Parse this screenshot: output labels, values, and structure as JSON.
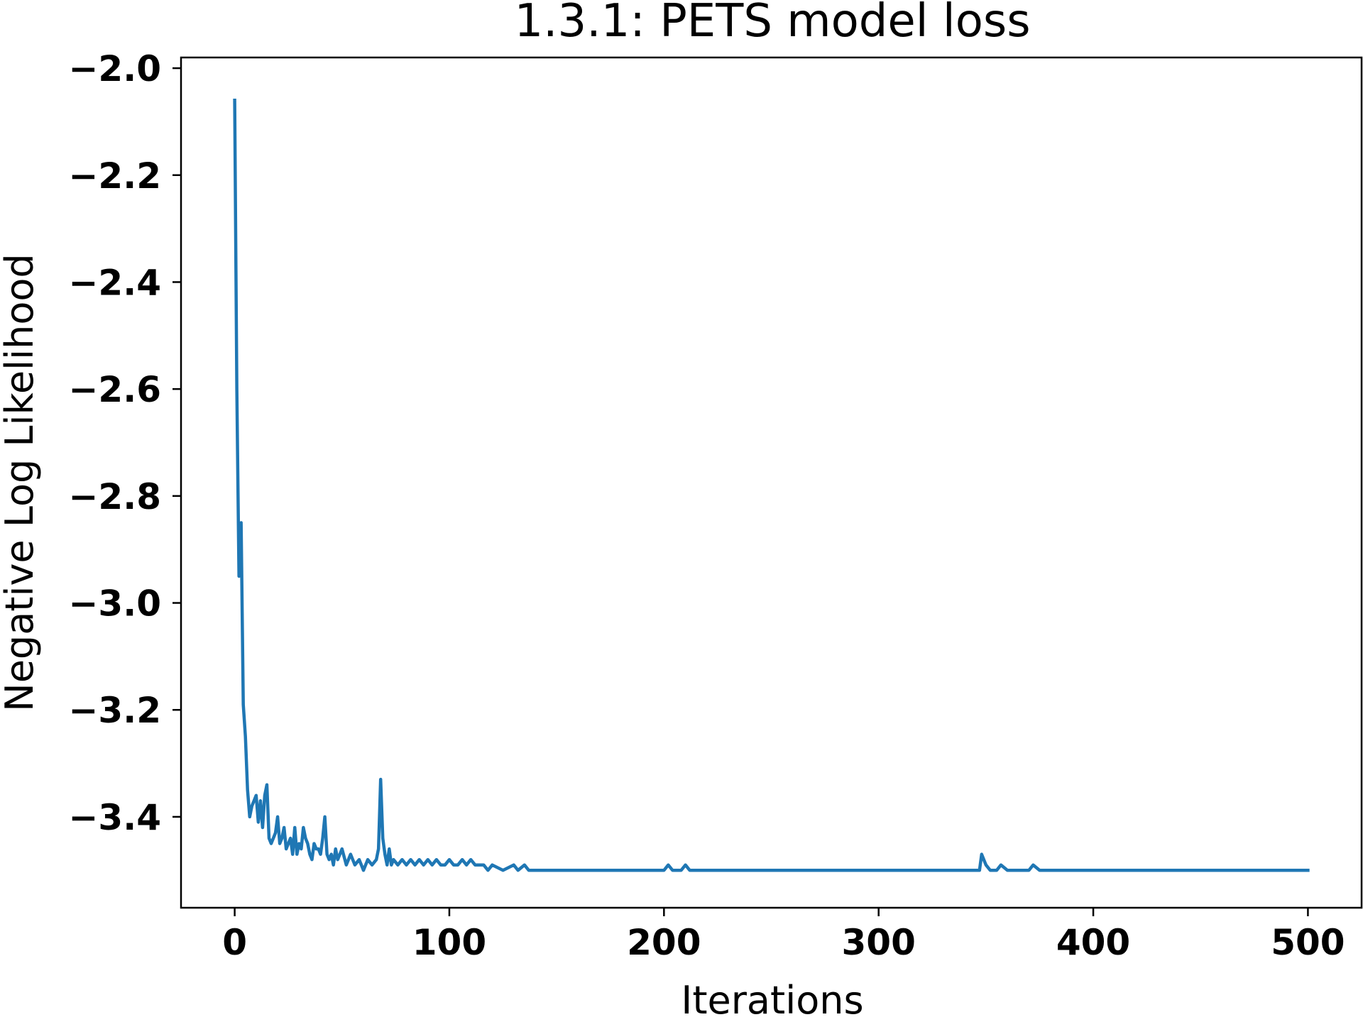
{
  "chart_data": {
    "type": "line",
    "title": "1.3.1: PETS model loss",
    "xlabel": "Iterations",
    "ylabel": "Negative Log Likelihood",
    "xlim": [
      -25,
      525
    ],
    "ylim": [
      -3.57,
      -1.98
    ],
    "xticks": [
      0,
      100,
      200,
      300,
      400,
      500
    ],
    "xtick_labels": [
      "0",
      "100",
      "200",
      "300",
      "400",
      "500"
    ],
    "yticks": [
      -2.0,
      -2.2,
      -2.4,
      -2.6,
      -2.8,
      -3.0,
      -3.2,
      -3.4
    ],
    "ytick_labels": [
      "−2.0",
      "−2.2",
      "−2.4",
      "−2.6",
      "−2.8",
      "−3.0",
      "−3.2",
      "−3.4"
    ],
    "grid": false,
    "legend": "none",
    "series_color": "#1f77b4",
    "series": [
      {
        "x": [
          0,
          1,
          2,
          3,
          4,
          5,
          6,
          7,
          8,
          9,
          10,
          11,
          12,
          13,
          14,
          15,
          16,
          17,
          18,
          19,
          20,
          21,
          22,
          23,
          24,
          25,
          26,
          27,
          28,
          29,
          30,
          31,
          32,
          33,
          34,
          35,
          36,
          37,
          38,
          39,
          40,
          41,
          42,
          43,
          44,
          45,
          46,
          47,
          48,
          49,
          50,
          52,
          54,
          56,
          58,
          60,
          62,
          64,
          66,
          67,
          68,
          69,
          70,
          71,
          72,
          73,
          74,
          76,
          78,
          80,
          82,
          84,
          86,
          88,
          90,
          92,
          94,
          96,
          98,
          100,
          102,
          104,
          106,
          108,
          110,
          112,
          114,
          116,
          118,
          120,
          125,
          130,
          132,
          135,
          137,
          140,
          145,
          150,
          155,
          160,
          170,
          180,
          190,
          200,
          202,
          204,
          208,
          210,
          212,
          220,
          230,
          240,
          250,
          260,
          270,
          280,
          290,
          300,
          310,
          320,
          330,
          340,
          345,
          347,
          348,
          350,
          352,
          355,
          357,
          360,
          370,
          372,
          375,
          380,
          390,
          400,
          410,
          420,
          430,
          440,
          450,
          460,
          470,
          480,
          487,
          488,
          490,
          495,
          500
        ],
        "y": [
          -2.06,
          -2.6,
          -2.95,
          -2.85,
          -3.19,
          -3.25,
          -3.35,
          -3.4,
          -3.38,
          -3.37,
          -3.36,
          -3.41,
          -3.37,
          -3.42,
          -3.36,
          -3.34,
          -3.44,
          -3.45,
          -3.44,
          -3.43,
          -3.4,
          -3.45,
          -3.44,
          -3.42,
          -3.46,
          -3.45,
          -3.44,
          -3.47,
          -3.42,
          -3.47,
          -3.45,
          -3.46,
          -3.42,
          -3.44,
          -3.45,
          -3.47,
          -3.48,
          -3.45,
          -3.46,
          -3.46,
          -3.47,
          -3.44,
          -3.4,
          -3.47,
          -3.48,
          -3.47,
          -3.49,
          -3.46,
          -3.48,
          -3.47,
          -3.46,
          -3.49,
          -3.47,
          -3.49,
          -3.48,
          -3.5,
          -3.48,
          -3.49,
          -3.48,
          -3.46,
          -3.33,
          -3.44,
          -3.47,
          -3.49,
          -3.46,
          -3.49,
          -3.48,
          -3.49,
          -3.48,
          -3.49,
          -3.48,
          -3.49,
          -3.48,
          -3.49,
          -3.48,
          -3.49,
          -3.48,
          -3.49,
          -3.49,
          -3.48,
          -3.49,
          -3.49,
          -3.48,
          -3.49,
          -3.48,
          -3.49,
          -3.49,
          -3.49,
          -3.5,
          -3.49,
          -3.5,
          -3.49,
          -3.5,
          -3.49,
          -3.5,
          -3.5,
          -3.5,
          -3.5,
          -3.5,
          -3.5,
          -3.5,
          -3.5,
          -3.5,
          -3.5,
          -3.49,
          -3.5,
          -3.5,
          -3.49,
          -3.5,
          -3.5,
          -3.5,
          -3.5,
          -3.5,
          -3.5,
          -3.5,
          -3.5,
          -3.5,
          -3.5,
          -3.5,
          -3.5,
          -3.5,
          -3.5,
          -3.5,
          -3.5,
          -3.47,
          -3.49,
          -3.5,
          -3.5,
          -3.49,
          -3.5,
          -3.5,
          -3.49,
          -3.5,
          -3.5,
          -3.5,
          -3.5,
          -3.5,
          -3.5,
          -3.5,
          -3.5,
          -3.5,
          -3.5,
          -3.5,
          -3.5,
          -3.5,
          -3.5,
          -3.5,
          -3.5,
          -3.5
        ]
      }
    ]
  }
}
